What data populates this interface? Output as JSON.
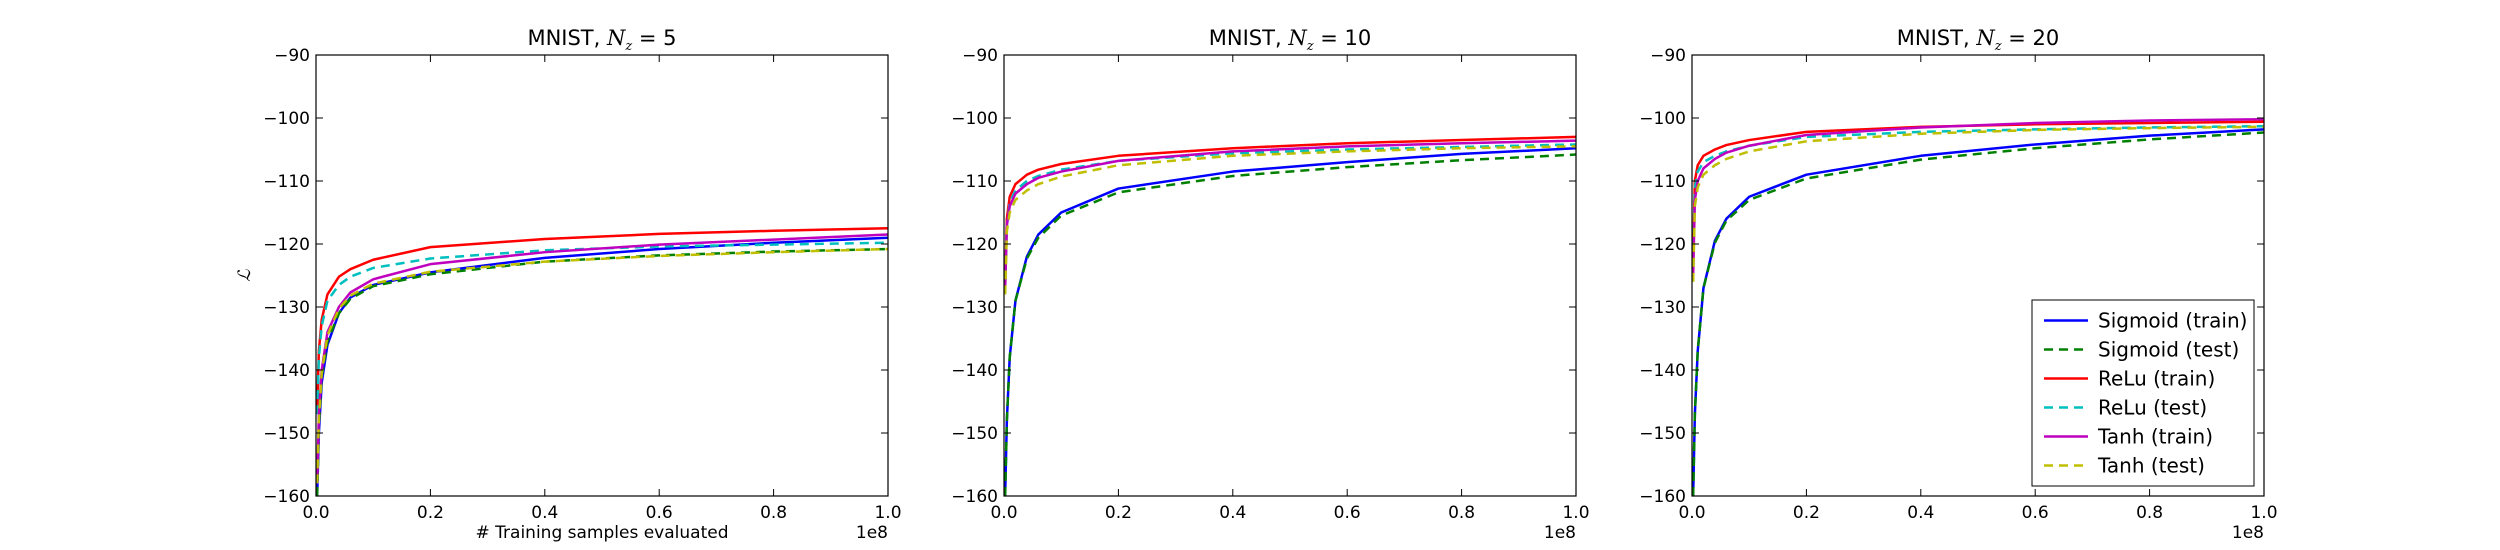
{
  "chart_data": [
    {
      "type": "line",
      "title_prefix": "MNIST, ",
      "title_symbol": "N",
      "title_subscript": "z",
      "title_suffix": " = 5",
      "xlabel": "# Training samples evaluated",
      "ylabel": "ℒ",
      "x_multiplier": "1e8",
      "xlim": [
        0.0,
        1.0
      ],
      "ylim": [
        -160,
        -90
      ],
      "xticks": [
        "0.0",
        "0.2",
        "0.4",
        "0.6",
        "0.8",
        "1.0"
      ],
      "yticks": [
        "−160",
        "−150",
        "−140",
        "−130",
        "−120",
        "−110",
        "−100",
        "−90"
      ],
      "series": [
        {
          "name": "Sigmoid (train)",
          "color": "#0000ff",
          "dash": "solid",
          "x": [
            0.002,
            0.005,
            0.01,
            0.02,
            0.04,
            0.06,
            0.1,
            0.2,
            0.4,
            0.6,
            0.8,
            1.0
          ],
          "y": [
            -160,
            -150,
            -142,
            -136,
            -131,
            -128.5,
            -126.5,
            -124.5,
            -122.2,
            -120.8,
            -119.8,
            -119
          ]
        },
        {
          "name": "Sigmoid (test)",
          "color": "#008000",
          "dash": "dashed",
          "x": [
            0.002,
            0.005,
            0.01,
            0.02,
            0.04,
            0.06,
            0.1,
            0.2,
            0.4,
            0.6,
            0.8,
            1.0
          ],
          "y": [
            -160,
            -149,
            -141,
            -135.5,
            -131,
            -128.7,
            -126.7,
            -124.8,
            -122.8,
            -121.8,
            -121.2,
            -120.8
          ]
        },
        {
          "name": "ReLu (train)",
          "color": "#ff0000",
          "dash": "solid",
          "x": [
            0.002,
            0.005,
            0.01,
            0.02,
            0.04,
            0.06,
            0.1,
            0.2,
            0.4,
            0.6,
            0.8,
            1.0
          ],
          "y": [
            -146,
            -137,
            -132,
            -128,
            -125.2,
            -124,
            -122.5,
            -120.5,
            -119.2,
            -118.4,
            -117.9,
            -117.5
          ]
        },
        {
          "name": "ReLu (test)",
          "color": "#00bfbf",
          "dash": "dashed",
          "x": [
            0.002,
            0.005,
            0.01,
            0.02,
            0.04,
            0.06,
            0.1,
            0.2,
            0.4,
            0.6,
            0.8,
            1.0
          ],
          "y": [
            -147,
            -138,
            -133,
            -129,
            -126.5,
            -125.2,
            -123.8,
            -122.3,
            -121,
            -120.4,
            -120.1,
            -119.8
          ]
        },
        {
          "name": "Tanh (train)",
          "color": "#bf00bf",
          "dash": "solid",
          "x": [
            0.002,
            0.005,
            0.01,
            0.02,
            0.04,
            0.06,
            0.1,
            0.2,
            0.4,
            0.6,
            0.8,
            1.0
          ],
          "y": [
            -158,
            -147,
            -140,
            -134,
            -130,
            -127.7,
            -125.6,
            -123.2,
            -121.3,
            -120.1,
            -119.3,
            -118.5
          ]
        },
        {
          "name": "Tanh (test)",
          "color": "#bfbf00",
          "dash": "dashed",
          "x": [
            0.002,
            0.005,
            0.01,
            0.02,
            0.04,
            0.06,
            0.1,
            0.2,
            0.4,
            0.6,
            0.8,
            1.0
          ],
          "y": [
            -158,
            -148,
            -140.5,
            -134.5,
            -130.3,
            -128.2,
            -126.3,
            -124.4,
            -122.8,
            -121.9,
            -121.3,
            -120.8
          ]
        }
      ]
    },
    {
      "type": "line",
      "title_prefix": "MNIST, ",
      "title_symbol": "N",
      "title_subscript": "z",
      "title_suffix": " = 10",
      "xlabel": "",
      "ylabel": "",
      "x_multiplier": "1e8",
      "xlim": [
        0.0,
        1.0
      ],
      "ylim": [
        -160,
        -90
      ],
      "xticks": [
        "0.0",
        "0.2",
        "0.4",
        "0.6",
        "0.8",
        "1.0"
      ],
      "yticks": [
        "−160",
        "−150",
        "−140",
        "−130",
        "−120",
        "−110",
        "−100",
        "−90"
      ],
      "series": [
        {
          "name": "Sigmoid (train)",
          "color": "#0000ff",
          "dash": "solid",
          "x": [
            0.002,
            0.005,
            0.01,
            0.02,
            0.04,
            0.06,
            0.1,
            0.2,
            0.4,
            0.6,
            0.8,
            1.0
          ],
          "y": [
            -160,
            -148,
            -138,
            -129,
            -122,
            -118.5,
            -115,
            -111.2,
            -108.5,
            -107,
            -105.7,
            -104.8
          ]
        },
        {
          "name": "Sigmoid (test)",
          "color": "#008000",
          "dash": "dashed",
          "x": [
            0.002,
            0.005,
            0.01,
            0.02,
            0.04,
            0.06,
            0.1,
            0.2,
            0.4,
            0.6,
            0.8,
            1.0
          ],
          "y": [
            -160,
            -148,
            -138,
            -129,
            -122.3,
            -119,
            -115.5,
            -111.8,
            -109.2,
            -107.8,
            -106.7,
            -105.8
          ]
        },
        {
          "name": "ReLu (train)",
          "color": "#ff0000",
          "dash": "solid",
          "x": [
            0.002,
            0.005,
            0.01,
            0.02,
            0.04,
            0.06,
            0.1,
            0.2,
            0.4,
            0.6,
            0.8,
            1.0
          ],
          "y": [
            -126,
            -116,
            -112.5,
            -110.5,
            -109,
            -108.2,
            -107.3,
            -106,
            -104.8,
            -104,
            -103.5,
            -103
          ]
        },
        {
          "name": "ReLu (test)",
          "color": "#00bfbf",
          "dash": "dashed",
          "x": [
            0.002,
            0.005,
            0.01,
            0.02,
            0.04,
            0.06,
            0.1,
            0.2,
            0.4,
            0.6,
            0.8,
            1.0
          ],
          "y": [
            -127,
            -117,
            -113.5,
            -111.5,
            -110,
            -109.2,
            -108.2,
            -106.8,
            -105.6,
            -105,
            -104.6,
            -104.2
          ]
        },
        {
          "name": "Tanh (train)",
          "color": "#bf00bf",
          "dash": "solid",
          "x": [
            0.002,
            0.005,
            0.01,
            0.02,
            0.04,
            0.06,
            0.1,
            0.2,
            0.4,
            0.6,
            0.8,
            1.0
          ],
          "y": [
            -127,
            -117,
            -114,
            -112,
            -110.5,
            -109.5,
            -108.5,
            -106.8,
            -105.3,
            -104.5,
            -104,
            -103.6
          ]
        },
        {
          "name": "Tanh (test)",
          "color": "#bfbf00",
          "dash": "dashed",
          "x": [
            0.002,
            0.005,
            0.01,
            0.02,
            0.04,
            0.06,
            0.1,
            0.2,
            0.4,
            0.6,
            0.8,
            1.0
          ],
          "y": [
            -128,
            -118,
            -115,
            -113,
            -111.5,
            -110.5,
            -109.3,
            -107.5,
            -106,
            -105.3,
            -104.8,
            -104.5
          ]
        }
      ]
    },
    {
      "type": "line",
      "title_prefix": "MNIST, ",
      "title_symbol": "N",
      "title_subscript": "z",
      "title_suffix": " = 20",
      "xlabel": "",
      "ylabel": "",
      "x_multiplier": "1e8",
      "xlim": [
        0.0,
        1.0
      ],
      "ylim": [
        -160,
        -90
      ],
      "xticks": [
        "0.0",
        "0.2",
        "0.4",
        "0.6",
        "0.8",
        "1.0"
      ],
      "yticks": [
        "−160",
        "−150",
        "−140",
        "−130",
        "−120",
        "−110",
        "−100",
        "−90"
      ],
      "legend": {
        "position": "lower right",
        "entries": [
          "Sigmoid (train)",
          "Sigmoid (test)",
          "ReLu (train)",
          "ReLu (test)",
          "Tanh (train)",
          "Tanh (test)"
        ]
      },
      "series": [
        {
          "name": "Sigmoid (train)",
          "color": "#0000ff",
          "dash": "solid",
          "x": [
            0.002,
            0.005,
            0.01,
            0.02,
            0.04,
            0.06,
            0.1,
            0.2,
            0.4,
            0.6,
            0.8,
            1.0
          ],
          "y": [
            -160,
            -147,
            -137,
            -127,
            -119.5,
            -116,
            -112.5,
            -109,
            -106,
            -104.2,
            -102.8,
            -101.8
          ]
        },
        {
          "name": "Sigmoid (test)",
          "color": "#008000",
          "dash": "dashed",
          "x": [
            0.002,
            0.005,
            0.01,
            0.02,
            0.04,
            0.06,
            0.1,
            0.2,
            0.4,
            0.6,
            0.8,
            1.0
          ],
          "y": [
            -160,
            -147,
            -137,
            -127,
            -119.8,
            -116.3,
            -113,
            -109.6,
            -106.6,
            -104.8,
            -103.4,
            -102.3
          ]
        },
        {
          "name": "ReLu (train)",
          "color": "#ff0000",
          "dash": "solid",
          "x": [
            0.002,
            0.005,
            0.01,
            0.02,
            0.04,
            0.06,
            0.1,
            0.2,
            0.4,
            0.6,
            0.8,
            1.0
          ],
          "y": [
            -122,
            -110,
            -107.5,
            -106,
            -105,
            -104.3,
            -103.5,
            -102.2,
            -101.4,
            -101,
            -100.8,
            -100.6
          ]
        },
        {
          "name": "ReLu (test)",
          "color": "#00bfbf",
          "dash": "dashed",
          "x": [
            0.002,
            0.005,
            0.01,
            0.02,
            0.04,
            0.06,
            0.1,
            0.2,
            0.4,
            0.6,
            0.8,
            1.0
          ],
          "y": [
            -123,
            -111,
            -108.5,
            -107,
            -106,
            -105.3,
            -104.4,
            -103,
            -102.2,
            -101.8,
            -101.5,
            -101.3
          ]
        },
        {
          "name": "Tanh (train)",
          "color": "#bf00bf",
          "dash": "solid",
          "x": [
            0.002,
            0.005,
            0.01,
            0.02,
            0.04,
            0.06,
            0.1,
            0.2,
            0.4,
            0.6,
            0.8,
            1.0
          ],
          "y": [
            -125,
            -113,
            -110,
            -108,
            -106.5,
            -105.5,
            -104.4,
            -102.7,
            -101.5,
            -100.8,
            -100.4,
            -100.2
          ]
        },
        {
          "name": "Tanh (test)",
          "color": "#bfbf00",
          "dash": "dashed",
          "x": [
            0.002,
            0.005,
            0.01,
            0.02,
            0.04,
            0.06,
            0.1,
            0.2,
            0.4,
            0.6,
            0.8,
            1.0
          ],
          "y": [
            -126,
            -114,
            -111,
            -109,
            -107.5,
            -106.5,
            -105.3,
            -103.7,
            -102.5,
            -101.9,
            -101.6,
            -101.4
          ]
        }
      ]
    }
  ]
}
